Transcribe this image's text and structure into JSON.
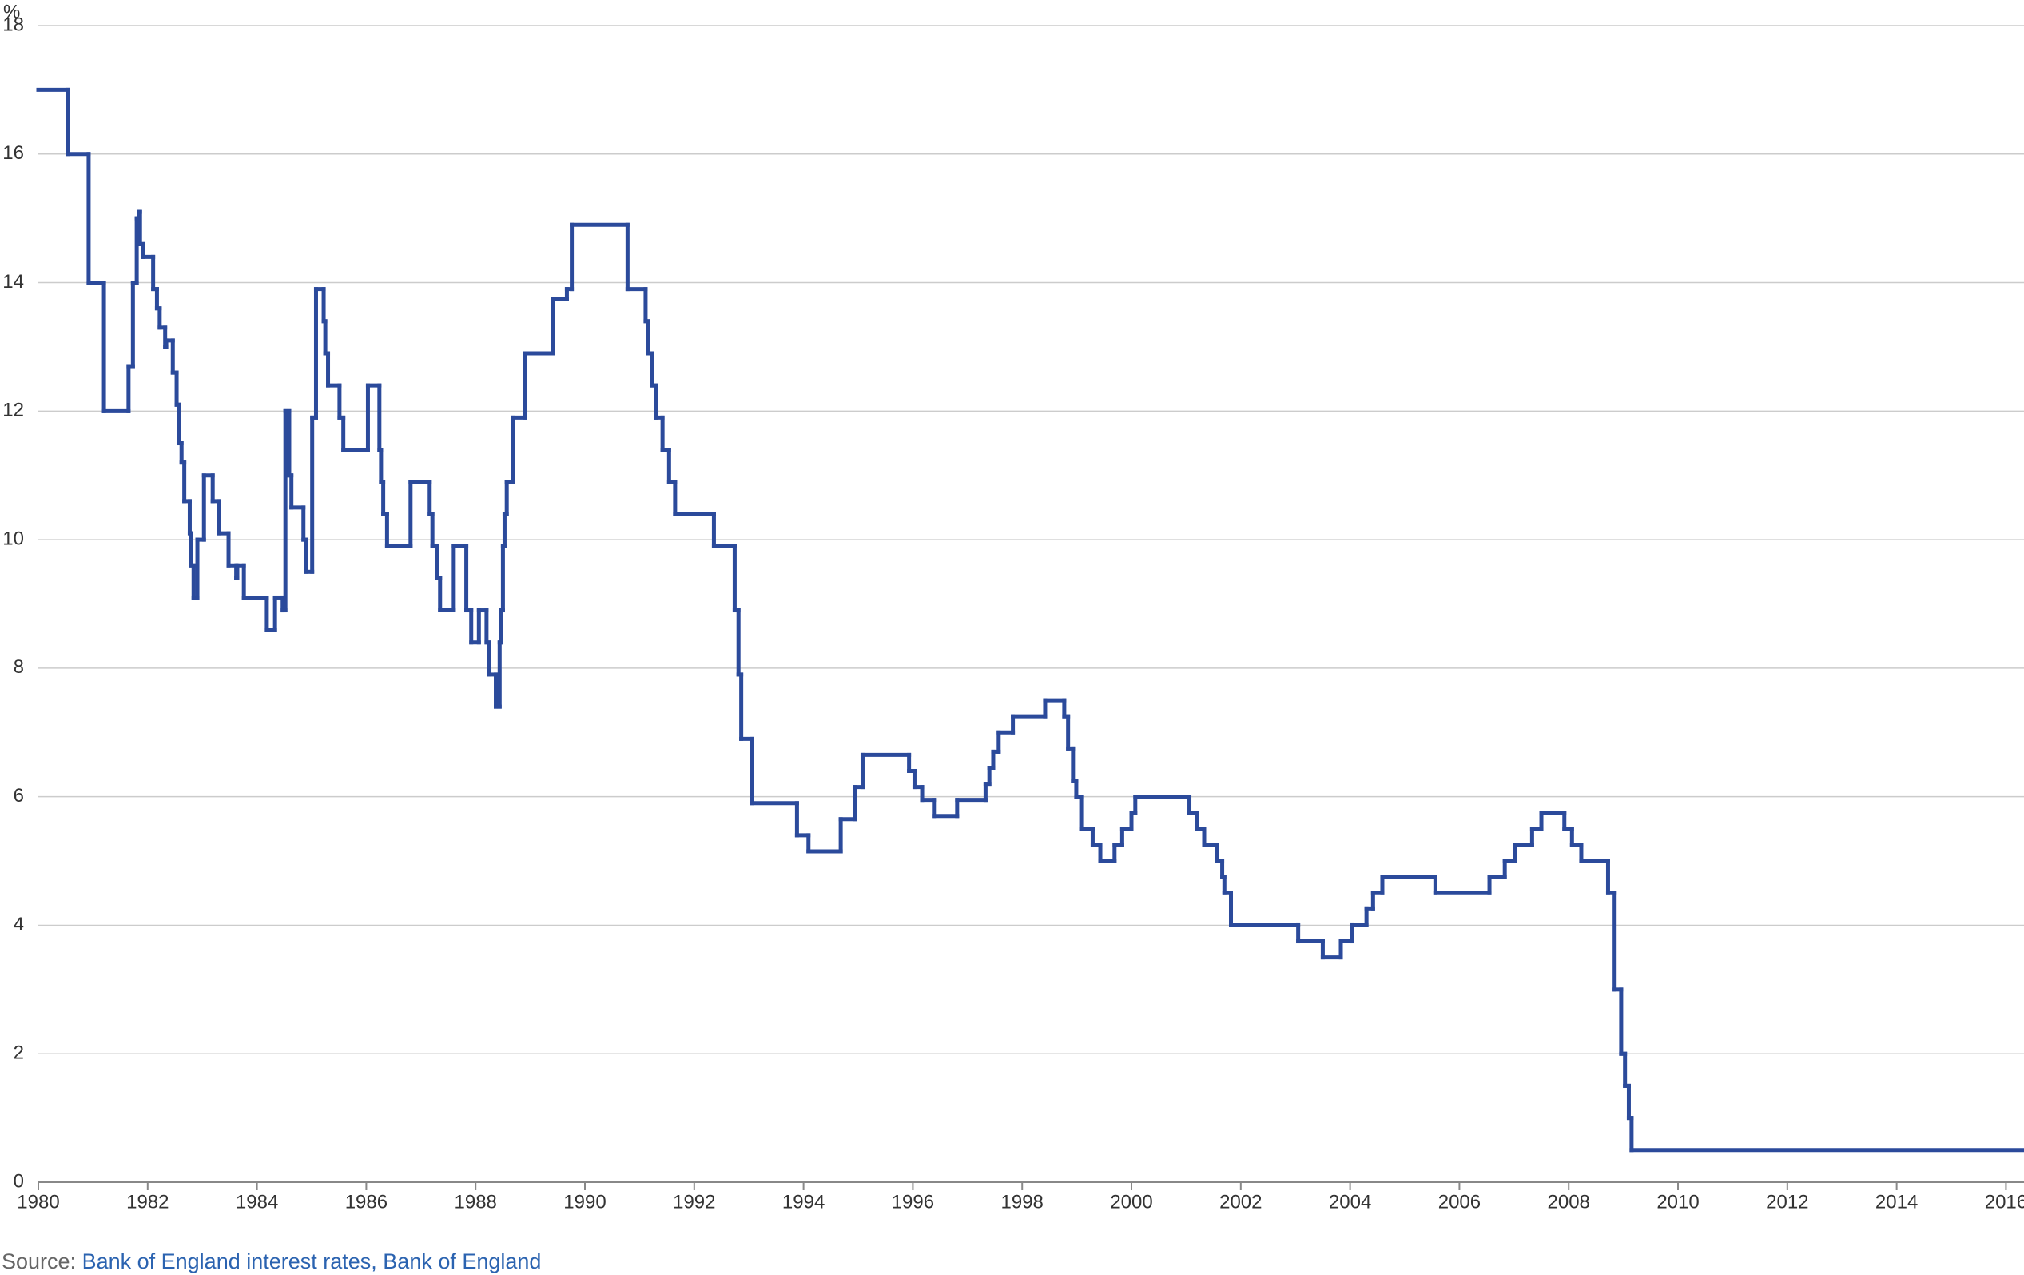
{
  "chart_data": {
    "type": "step",
    "y_label": "%",
    "source_label": "Source:",
    "source_text": "Bank of England interest rates, Bank of England",
    "xlim": [
      1980,
      2016.33
    ],
    "ylim": [
      0,
      18
    ],
    "xticks": [
      1980,
      1982,
      1984,
      1986,
      1988,
      1990,
      1992,
      1994,
      1996,
      1998,
      2000,
      2002,
      2004,
      2006,
      2008,
      2010,
      2012,
      2014,
      2016
    ],
    "yticks": [
      0,
      2,
      4,
      6,
      8,
      10,
      12,
      14,
      16,
      18
    ],
    "grid": true,
    "color": "#2b4a9b",
    "x": [
      1980.0,
      1980.54,
      1980.92,
      1981.2,
      1981.65,
      1981.73,
      1981.8,
      1981.82,
      1981.84,
      1981.86,
      1981.91,
      1982.1,
      1982.17,
      1982.22,
      1982.32,
      1982.34,
      1982.46,
      1982.53,
      1982.58,
      1982.62,
      1982.67,
      1982.77,
      1982.79,
      1982.84,
      1982.91,
      1983.03,
      1983.19,
      1983.31,
      1983.48,
      1983.62,
      1983.64,
      1983.76,
      1984.18,
      1984.33,
      1984.47,
      1984.52,
      1984.59,
      1984.63,
      1984.85,
      1984.9,
      1985.01,
      1985.08,
      1985.22,
      1985.25,
      1985.3,
      1985.51,
      1985.58,
      1986.03,
      1986.24,
      1986.27,
      1986.31,
      1986.38,
      1986.81,
      1987.16,
      1987.21,
      1987.3,
      1987.35,
      1987.6,
      1987.83,
      1987.92,
      1988.06,
      1988.2,
      1988.25,
      1988.37,
      1988.44,
      1988.47,
      1988.5,
      1988.53,
      1988.57,
      1988.68,
      1988.91,
      1989.41,
      1989.67,
      1989.76,
      1990.78,
      1991.11,
      1991.16,
      1991.23,
      1991.3,
      1991.42,
      1991.54,
      1991.65,
      1992.36,
      1992.74,
      1992.81,
      1992.86,
      1993.05,
      1993.88,
      1994.09,
      1994.68,
      1994.94,
      1995.08,
      1995.93,
      1996.03,
      1996.17,
      1996.4,
      1996.81,
      1997.33,
      1997.4,
      1997.47,
      1997.57,
      1997.83,
      1998.42,
      1998.77,
      1998.84,
      1998.93,
      1998.99,
      1999.08,
      1999.29,
      1999.43,
      1999.69,
      1999.83,
      2000.0,
      2000.07,
      2001.06,
      2001.2,
      2001.33,
      2001.56,
      2001.66,
      2001.7,
      2001.82,
      2003.05,
      2003.5,
      2003.83,
      2004.04,
      2004.3,
      2004.42,
      2004.59,
      2005.56,
      2006.55,
      2006.83,
      2007.02,
      2007.33,
      2007.5,
      2007.92,
      2008.06,
      2008.23,
      2008.72,
      2008.84,
      2008.96,
      2009.03,
      2009.1,
      2009.15
    ],
    "values": [
      17,
      16,
      14,
      12,
      12.7,
      14,
      15,
      14.6,
      15.1,
      14.6,
      14.4,
      13.9,
      13.6,
      13.3,
      13,
      13.1,
      12.6,
      12.1,
      11.5,
      11.2,
      10.6,
      10.1,
      9.6,
      9.1,
      10,
      11,
      10.6,
      10.1,
      9.6,
      9.4,
      9.6,
      9.1,
      8.6,
      9.1,
      8.9,
      12,
      11,
      10.5,
      10,
      9.5,
      11.9,
      13.9,
      13.4,
      12.9,
      12.4,
      11.9,
      11.4,
      12.4,
      11.4,
      10.9,
      10.4,
      9.9,
      10.9,
      10.4,
      9.9,
      9.4,
      8.9,
      9.9,
      8.9,
      8.4,
      8.9,
      8.4,
      7.9,
      7.4,
      8.4,
      8.9,
      9.9,
      10.4,
      10.9,
      11.9,
      12.9,
      13.75,
      13.9,
      14.9,
      13.9,
      13.4,
      12.9,
      12.4,
      11.9,
      11.4,
      10.9,
      10.4,
      9.9,
      8.9,
      7.9,
      6.9,
      5.9,
      5.4,
      5.15,
      5.65,
      6.15,
      6.65,
      6.4,
      6.15,
      5.95,
      5.7,
      5.95,
      6.2,
      6.45,
      6.7,
      7,
      7.25,
      7.5,
      7.25,
      6.75,
      6.25,
      6,
      5.5,
      5.25,
      5,
      5.25,
      5.5,
      5.75,
      6,
      5.75,
      5.5,
      5.25,
      5,
      4.75,
      4.5,
      4,
      3.75,
      3.5,
      3.75,
      4,
      4.25,
      4.5,
      4.75,
      4.5,
      4.75,
      5,
      5.25,
      5.5,
      5.75,
      5.5,
      5.25,
      5,
      4.5,
      3,
      2,
      1.5,
      1,
      0.5
    ]
  }
}
